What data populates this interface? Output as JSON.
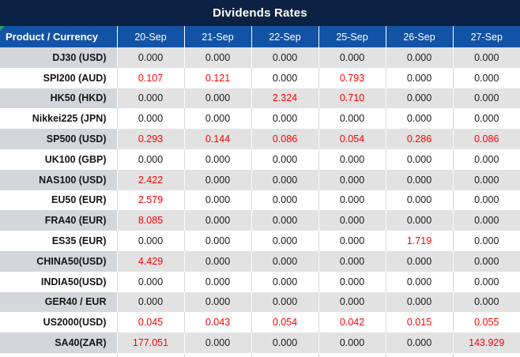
{
  "title": "Dividends Rates",
  "colors": {
    "title_bg": "#0c2244",
    "header_bg": "#1353a6",
    "stripe_label_bg": "#d3d6db",
    "stripe_value_bg": "#e2e2e2",
    "normal_value": "#1a1a1a",
    "negative_value": "#ff0000",
    "flag_green": "#21a366"
  },
  "icons": {
    "corner_flag": "green-corner-triangle"
  },
  "table": {
    "product_header": "Product / Currency",
    "date_headers": [
      "20-Sep",
      "21-Sep",
      "22-Sep",
      "25-Sep",
      "26-Sep",
      "27-Sep"
    ],
    "rows": [
      {
        "product": "DJ30 (USD)",
        "values": [
          "0.000",
          "0.000",
          "0.000",
          "0.000",
          "0.000",
          "0.000"
        ],
        "red": [
          false,
          false,
          false,
          false,
          false,
          false
        ]
      },
      {
        "product": "SPI200 (AUD)",
        "values": [
          "0.107",
          "0.121",
          "0.000",
          "0.793",
          "0.000",
          "0.000"
        ],
        "red": [
          true,
          true,
          false,
          true,
          false,
          false
        ]
      },
      {
        "product": "HK50 (HKD)",
        "values": [
          "0.000",
          "0.000",
          "2.324",
          "0.710",
          "0.000",
          "0.000"
        ],
        "red": [
          false,
          false,
          true,
          true,
          false,
          false
        ]
      },
      {
        "product": "Nikkei225 (JPN)",
        "values": [
          "0.000",
          "0.000",
          "0.000",
          "0.000",
          "0.000",
          "0.000"
        ],
        "red": [
          false,
          false,
          false,
          false,
          false,
          false
        ]
      },
      {
        "product": "SP500 (USD)",
        "values": [
          "0.293",
          "0.144",
          "0.086",
          "0.054",
          "0.286",
          "0.086"
        ],
        "red": [
          true,
          true,
          true,
          true,
          true,
          true
        ]
      },
      {
        "product": "UK100 (GBP)",
        "values": [
          "0.000",
          "0.000",
          "0.000",
          "0.000",
          "0.000",
          "0.000"
        ],
        "red": [
          false,
          false,
          false,
          false,
          false,
          false
        ]
      },
      {
        "product": "NAS100 (USD)",
        "values": [
          "2.422",
          "0.000",
          "0.000",
          "0.000",
          "0.000",
          "0.000"
        ],
        "red": [
          true,
          false,
          false,
          false,
          false,
          false
        ]
      },
      {
        "product": "EU50 (EUR)",
        "values": [
          "2.579",
          "0.000",
          "0.000",
          "0.000",
          "0.000",
          "0.000"
        ],
        "red": [
          true,
          false,
          false,
          false,
          false,
          false
        ]
      },
      {
        "product": "FRA40 (EUR)",
        "values": [
          "8.085",
          "0.000",
          "0.000",
          "0.000",
          "0.000",
          "0.000"
        ],
        "red": [
          true,
          false,
          false,
          false,
          false,
          false
        ]
      },
      {
        "product": "ES35 (EUR)",
        "values": [
          "0.000",
          "0.000",
          "0.000",
          "0.000",
          "1.719",
          "0.000"
        ],
        "red": [
          false,
          false,
          false,
          false,
          true,
          false
        ]
      },
      {
        "product": "CHINA50(USD)",
        "values": [
          "4.429",
          "0.000",
          "0.000",
          "0.000",
          "0.000",
          "0.000"
        ],
        "red": [
          true,
          false,
          false,
          false,
          false,
          false
        ]
      },
      {
        "product": "INDIA50(USD)",
        "values": [
          "0.000",
          "0.000",
          "0.000",
          "0.000",
          "0.000",
          "0.000"
        ],
        "red": [
          false,
          false,
          false,
          false,
          false,
          false
        ]
      },
      {
        "product": "GER40 / EUR",
        "values": [
          "0.000",
          "0.000",
          "0.000",
          "0.000",
          "0.000",
          "0.000"
        ],
        "red": [
          false,
          false,
          false,
          false,
          false,
          false
        ]
      },
      {
        "product": "US2000(USD)",
        "values": [
          "0.045",
          "0.043",
          "0.054",
          "0.042",
          "0.015",
          "0.055"
        ],
        "red": [
          true,
          true,
          true,
          true,
          true,
          true
        ]
      },
      {
        "product": "SA40(ZAR)",
        "values": [
          "177.051",
          "0.000",
          "0.000",
          "0.000",
          "0.000",
          "143.929"
        ],
        "red": [
          true,
          false,
          false,
          false,
          false,
          true
        ]
      }
    ]
  }
}
